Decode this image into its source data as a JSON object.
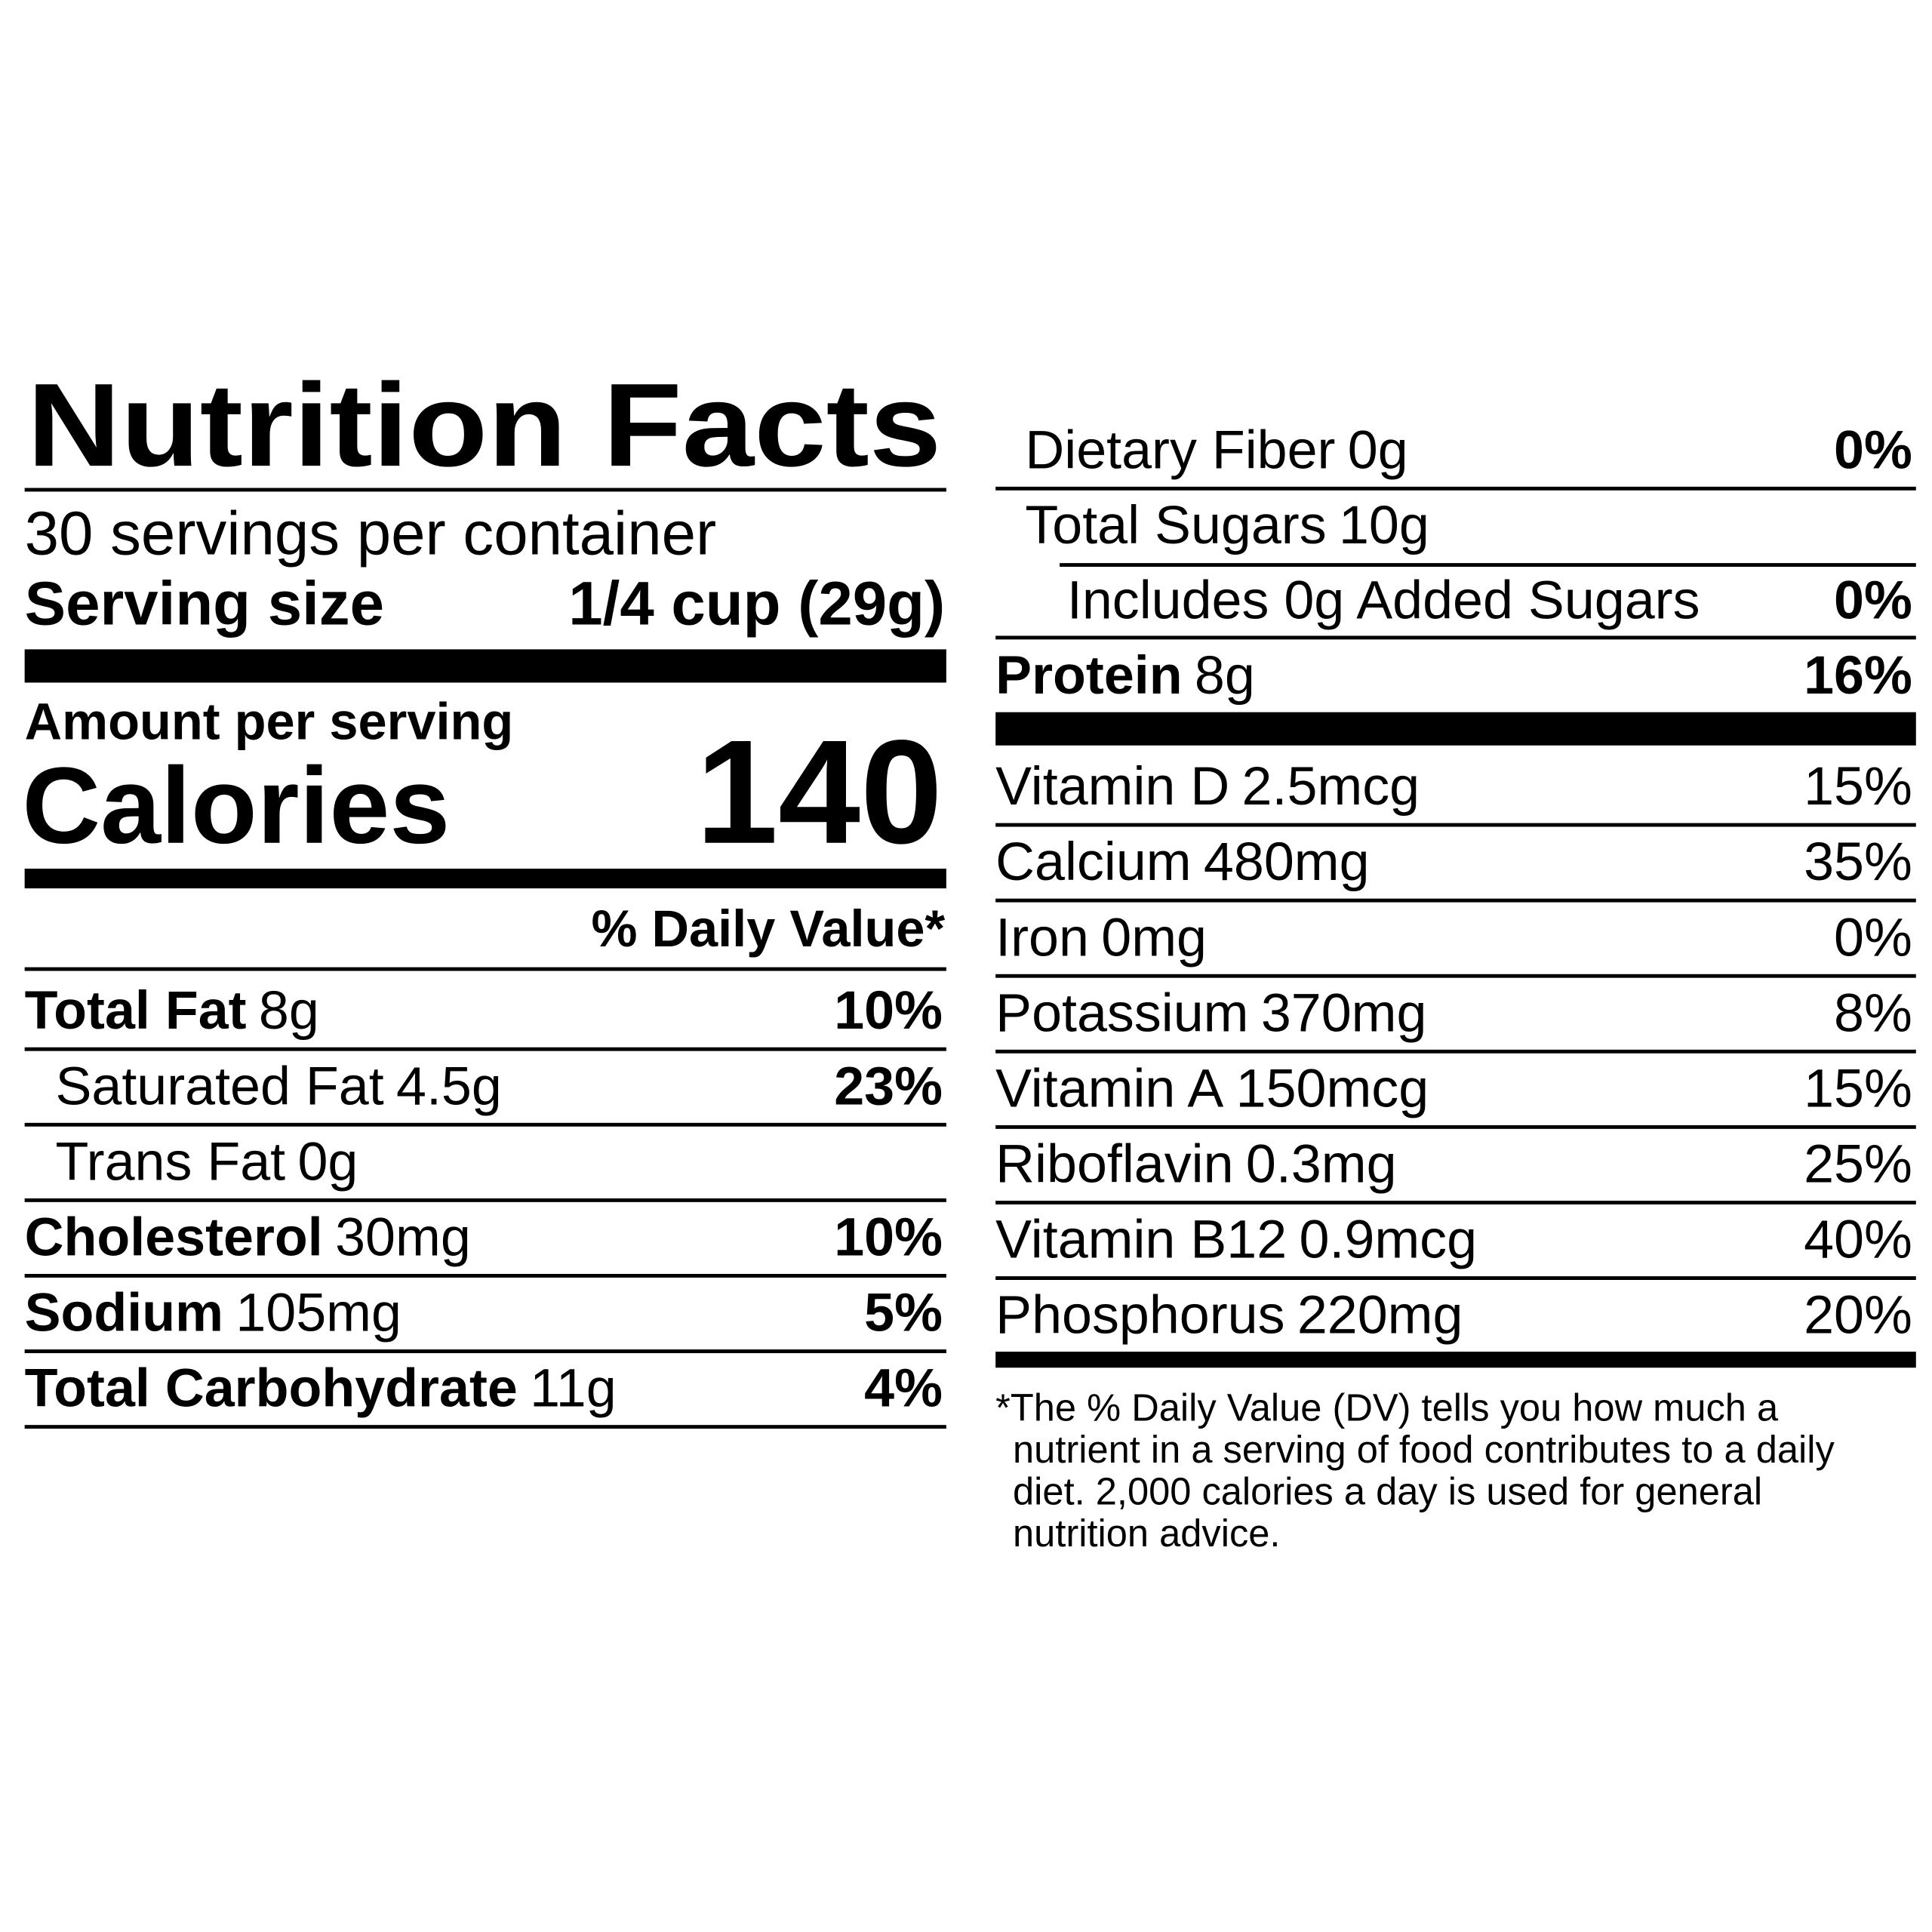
{
  "title": "Nutrition Facts",
  "servings": "30 servings per container",
  "serving_size": {
    "label": "Serving size",
    "value": "1/4 cup (29g)"
  },
  "amount_per_serving": "Amount per serving",
  "calories": {
    "label": "Calories",
    "value": 140
  },
  "daily_value_header": "% Daily Value*",
  "left_rows": [
    {
      "name": "Total Fat",
      "amount": "8g",
      "dv": "10%"
    },
    {
      "name": "Saturated Fat",
      "amount": "4.5g",
      "dv": "23%"
    },
    {
      "name": "Trans Fat",
      "amount": "0g"
    },
    {
      "name": "Cholesterol",
      "amount": "30mg",
      "dv": "10%"
    },
    {
      "name": "Sodium",
      "amount": "105mg",
      "dv": "5%"
    },
    {
      "name": "Total Carbohydrate",
      "amount": "11g",
      "dv": "4%"
    }
  ],
  "right_rows": [
    {
      "name": "Dietary Fiber",
      "amount": "0g",
      "dv": "0%"
    },
    {
      "name": "Total Sugars",
      "amount": "10g"
    },
    {
      "name": "Includes 0g Added Sugars",
      "dv": "0%"
    },
    {
      "name": "Protein",
      "amount": "8g",
      "dv": "16%"
    }
  ],
  "vitamins": [
    {
      "name": "Vitamin D",
      "amount": "2.5mcg",
      "dv": "15%"
    },
    {
      "name": "Calcium",
      "amount": "480mg",
      "dv": "35%"
    },
    {
      "name": "Iron",
      "amount": "0mg",
      "dv": "0%"
    },
    {
      "name": "Potassium",
      "amount": "370mg",
      "dv": "8%"
    },
    {
      "name": "Vitamin A",
      "amount": "150mcg",
      "dv": "15%"
    },
    {
      "name": "Riboflavin",
      "amount": "0.3mg",
      "dv": "25%"
    },
    {
      "name": "Vitamin B12",
      "amount": "0.9mcg",
      "dv": "40%"
    },
    {
      "name": "Phosphorus",
      "amount": "220mg",
      "dv": "20%"
    }
  ],
  "footnote": [
    "*The % Daily Value (DV) tells you how much a",
    "nutrient in a serving of food contributes to a daily",
    "diet. 2,000 calories a day is used for general",
    "nutrition advice."
  ]
}
